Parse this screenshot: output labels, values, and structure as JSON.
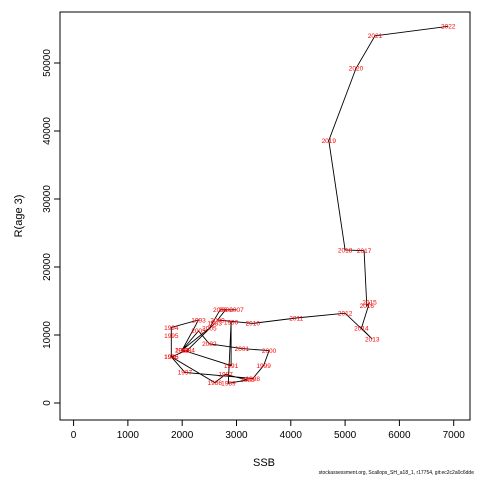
{
  "chart_data": {
    "type": "line",
    "title": "",
    "xlabel": "SSB",
    "ylabel": "R(age 3)",
    "xlim": [
      -250,
      7300
    ],
    "ylim": [
      -2500,
      57500
    ],
    "xticks": [
      "0",
      "1000",
      "2000",
      "3000",
      "4000",
      "5000",
      "6000",
      "7000"
    ],
    "yticks": [
      "0",
      "10000",
      "20000",
      "30000",
      "40000",
      "50000"
    ],
    "line_color": "#000000",
    "label_color": "#ff0000",
    "points": [
      {
        "label": "1983",
        "x": 2600,
        "y": 11700
      },
      {
        "label": "1984",
        "x": 2100,
        "y": 7800
      },
      {
        "label": "1985",
        "x": 1800,
        "y": 6800
      },
      {
        "label": "1986",
        "x": 2600,
        "y": 3000
      },
      {
        "label": "1987",
        "x": 2800,
        "y": 4200
      },
      {
        "label": "1988",
        "x": 3200,
        "y": 3400
      },
      {
        "label": "1989",
        "x": 2850,
        "y": 2900
      },
      {
        "label": "1990",
        "x": 2900,
        "y": 11900
      },
      {
        "label": "1991",
        "x": 2900,
        "y": 5500
      },
      {
        "label": "1992",
        "x": 2000,
        "y": 7800
      },
      {
        "label": "1993",
        "x": 2300,
        "y": 12200
      },
      {
        "label": "1994",
        "x": 1800,
        "y": 11100
      },
      {
        "label": "1995",
        "x": 1800,
        "y": 9900
      },
      {
        "label": "1996",
        "x": 1800,
        "y": 6800
      },
      {
        "label": "1997",
        "x": 2050,
        "y": 4500
      },
      {
        "label": "1998",
        "x": 3300,
        "y": 3600
      },
      {
        "label": "1999",
        "x": 3500,
        "y": 5500
      },
      {
        "label": "2000",
        "x": 3600,
        "y": 7700
      },
      {
        "label": "2001",
        "x": 3100,
        "y": 8000
      },
      {
        "label": "2002",
        "x": 2500,
        "y": 8700
      },
      {
        "label": "2003",
        "x": 2300,
        "y": 10600
      },
      {
        "label": "2004",
        "x": 2000,
        "y": 7800
      },
      {
        "label": "2005",
        "x": 2500,
        "y": 11000
      },
      {
        "label": "2006",
        "x": 2700,
        "y": 13700
      },
      {
        "label": "2007",
        "x": 3000,
        "y": 13700
      },
      {
        "label": "2008",
        "x": 2800,
        "y": 13700
      },
      {
        "label": "2009",
        "x": 2650,
        "y": 12200
      },
      {
        "label": "2010",
        "x": 3300,
        "y": 11700
      },
      {
        "label": "2011",
        "x": 4100,
        "y": 12500
      },
      {
        "label": "2012",
        "x": 5000,
        "y": 13200
      },
      {
        "label": "2013",
        "x": 5500,
        "y": 9400
      },
      {
        "label": "2014",
        "x": 5300,
        "y": 11000
      },
      {
        "label": "2015",
        "x": 5450,
        "y": 14800
      },
      {
        "label": "2016",
        "x": 5400,
        "y": 14300
      },
      {
        "label": "2017",
        "x": 5350,
        "y": 22400
      },
      {
        "label": "2018",
        "x": 5000,
        "y": 22500
      },
      {
        "label": "2019",
        "x": 4700,
        "y": 38600
      },
      {
        "label": "2020",
        "x": 5200,
        "y": 49200
      },
      {
        "label": "2021",
        "x": 5550,
        "y": 54000
      },
      {
        "label": "2022",
        "x": 6900,
        "y": 55400
      }
    ]
  },
  "caption": "stockassessment.org, Scallops_SH_a18_1, r17754, git:ec2c2a0c6dde"
}
